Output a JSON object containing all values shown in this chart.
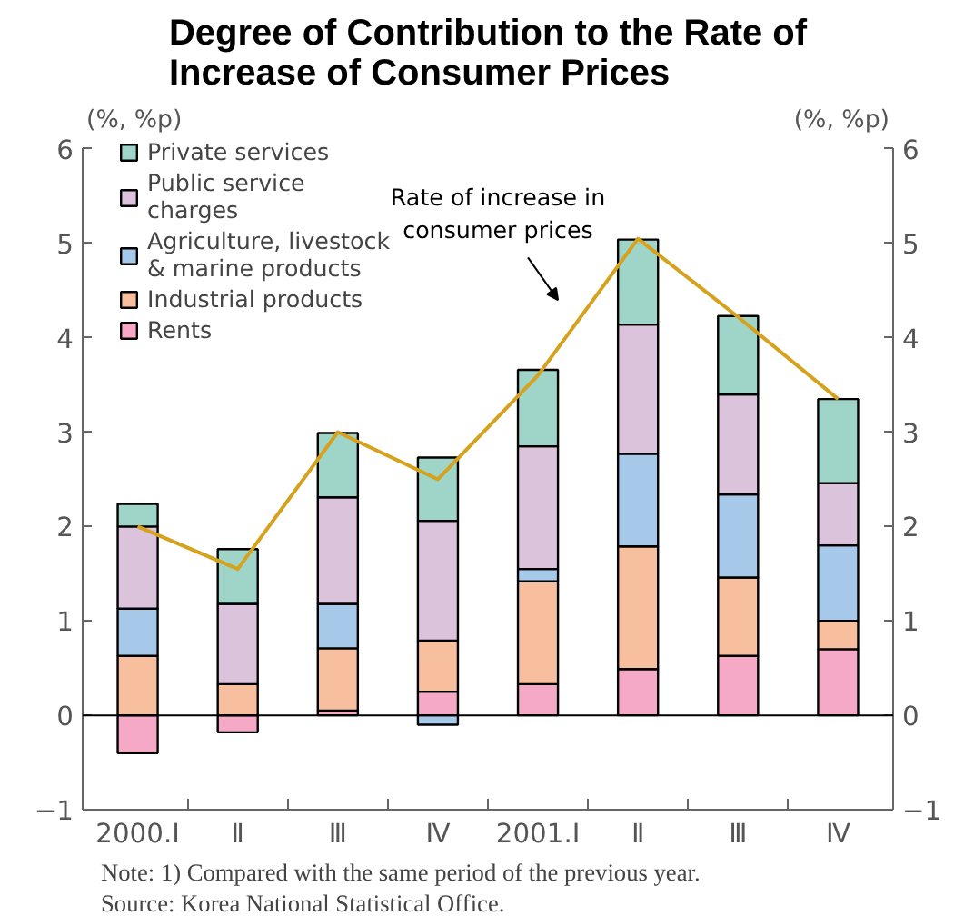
{
  "chart_data": {
    "type": "bar",
    "stacked": true,
    "title": "Degree of Contribution to the Rate of\nIncrease of Consumer Prices",
    "ylabel": "(%, %p)",
    "y2label": "(%, %p)",
    "categories": [
      "2000.Ⅰ",
      "Ⅱ",
      "Ⅲ",
      "Ⅳ",
      "2001.Ⅰ",
      "Ⅱ",
      "Ⅲ",
      "Ⅳ"
    ],
    "series": [
      {
        "name": "Rents",
        "color": "#f5a9c6",
        "values": [
          -0.4,
          -0.18,
          0.05,
          0.25,
          0.33,
          0.49,
          0.63,
          0.7
        ]
      },
      {
        "name": "Industrial products",
        "color": "#f7bf9e",
        "values": [
          0.63,
          0.33,
          0.66,
          0.54,
          1.09,
          1.3,
          0.83,
          0.3
        ]
      },
      {
        "name": "Agriculture, livestock\n& marine products",
        "color": "#a6c9ea",
        "values": [
          0.5,
          0,
          0.47,
          -0.1,
          0.13,
          0.98,
          0.88,
          0.8
        ]
      },
      {
        "name": "Public service\ncharges",
        "color": "#dcc3dc",
        "values": [
          0.87,
          0.85,
          1.13,
          1.27,
          1.3,
          1.37,
          1.06,
          0.66
        ]
      },
      {
        "name": "Private services",
        "color": "#9fd5c8",
        "values": [
          0.24,
          0.58,
          0.68,
          0.67,
          0.81,
          0.9,
          0.83,
          0.89
        ]
      },
      {
        "type": "line",
        "color": "#d6a21e",
        "values": [
          2.0,
          1.55,
          3.0,
          2.5,
          3.6,
          5.05,
          4.22,
          3.35
        ]
      }
    ],
    "ylim": [
      -1,
      6
    ],
    "yticks": [
      -1,
      0,
      1,
      2,
      3,
      4,
      5,
      6
    ],
    "y2lim": [
      -1,
      6
    ],
    "y2ticks": [
      -1,
      0,
      1,
      2,
      3,
      4,
      5,
      6
    ],
    "ref_lines": [
      {
        "axis": "y",
        "value": 0,
        "color": "#000000"
      }
    ],
    "legend": "top left",
    "grid": false,
    "annotations": [
      "Rate of increase in\nconsumer prices",
      "Note: 1) Compared with the same period of the previous year.",
      "Source: Korea National Statistical Office."
    ]
  }
}
